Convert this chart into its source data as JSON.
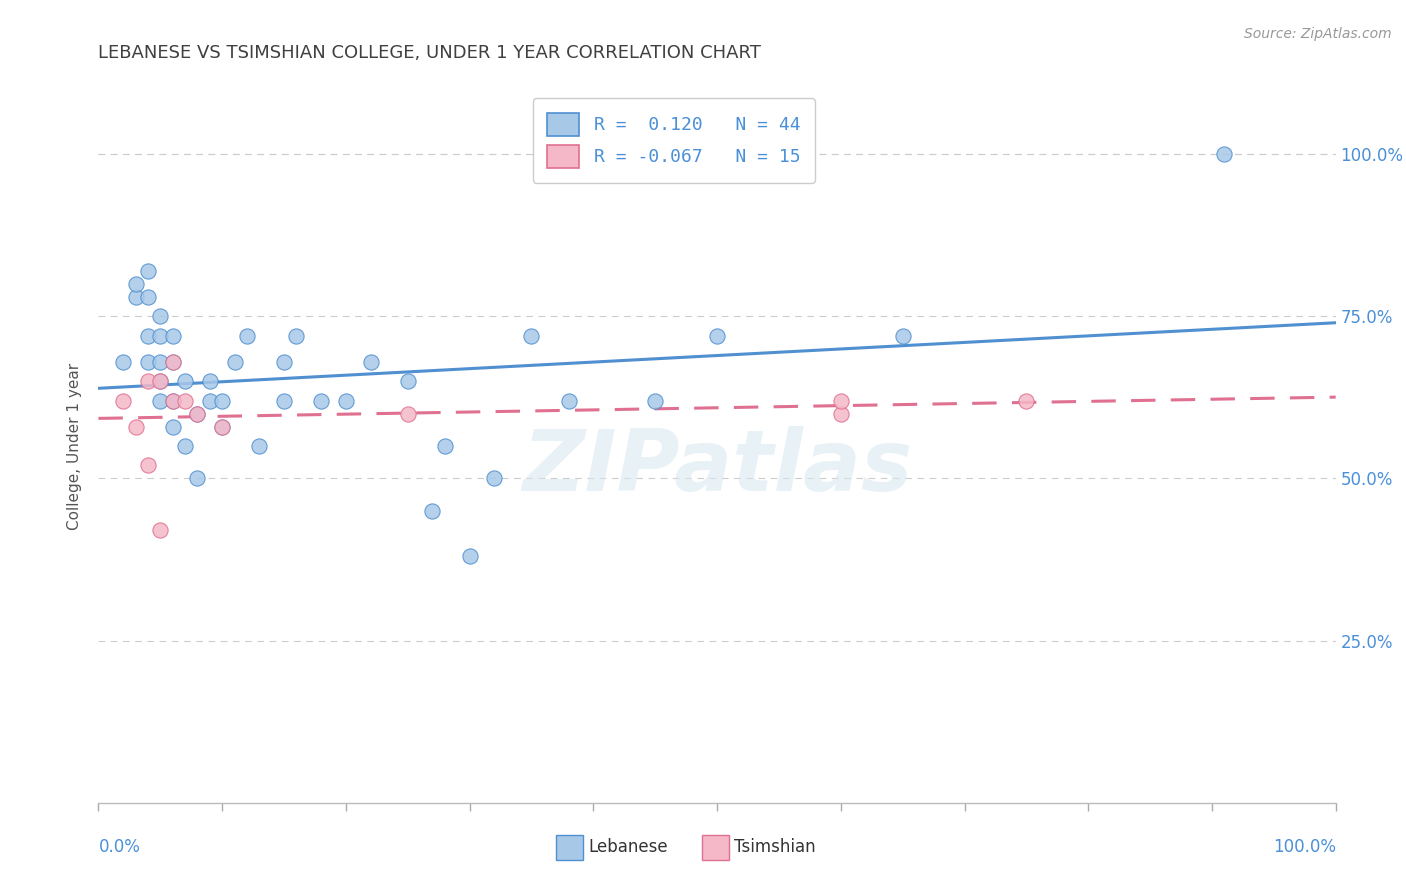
{
  "title": "LEBANESE VS TSIMSHIAN COLLEGE, UNDER 1 YEAR CORRELATION CHART",
  "source": "Source: ZipAtlas.com",
  "ylabel": "College, Under 1 year",
  "watermark": "ZIPatlas",
  "lebanese_R": 0.12,
  "lebanese_N": 44,
  "tsimshian_R": -0.067,
  "tsimshian_N": 15,
  "lebanese_color": "#a8c8e8",
  "tsimshian_color": "#f4b8c8",
  "lebanese_line_color": "#5090d0",
  "tsimshian_line_color": "#e07090",
  "grid_color": "#cccccc",
  "title_color": "#404040",
  "background_color": "#ffffff",
  "lebanese_scatter_x": [
    0.02,
    0.03,
    0.03,
    0.04,
    0.04,
    0.04,
    0.04,
    0.05,
    0.05,
    0.05,
    0.05,
    0.05,
    0.06,
    0.06,
    0.06,
    0.06,
    0.07,
    0.07,
    0.08,
    0.08,
    0.09,
    0.09,
    0.1,
    0.1,
    0.11,
    0.12,
    0.13,
    0.15,
    0.15,
    0.16,
    0.18,
    0.2,
    0.22,
    0.25,
    0.27,
    0.28,
    0.3,
    0.32,
    0.35,
    0.38,
    0.45,
    0.5,
    0.65,
    0.91
  ],
  "lebanese_scatter_y": [
    0.68,
    0.78,
    0.8,
    0.68,
    0.72,
    0.78,
    0.82,
    0.62,
    0.65,
    0.68,
    0.72,
    0.75,
    0.58,
    0.62,
    0.68,
    0.72,
    0.55,
    0.65,
    0.5,
    0.6,
    0.62,
    0.65,
    0.58,
    0.62,
    0.68,
    0.72,
    0.55,
    0.62,
    0.68,
    0.72,
    0.62,
    0.62,
    0.68,
    0.65,
    0.45,
    0.55,
    0.38,
    0.5,
    0.72,
    0.62,
    0.62,
    0.72,
    0.72,
    1.0
  ],
  "tsimshian_scatter_x": [
    0.02,
    0.03,
    0.04,
    0.04,
    0.05,
    0.05,
    0.06,
    0.06,
    0.07,
    0.08,
    0.1,
    0.25,
    0.6,
    0.6,
    0.75
  ],
  "tsimshian_scatter_y": [
    0.62,
    0.58,
    0.52,
    0.65,
    0.42,
    0.65,
    0.62,
    0.68,
    0.62,
    0.6,
    0.58,
    0.6,
    0.6,
    0.62,
    0.62
  ],
  "xlim": [
    0.0,
    1.0
  ],
  "ylim": [
    0.0,
    1.1
  ],
  "ytick_positions": [
    0.25,
    0.5,
    0.75,
    1.0
  ],
  "ytick_labels": [
    "25.0%",
    "50.0%",
    "75.0%",
    "100.0%"
  ]
}
